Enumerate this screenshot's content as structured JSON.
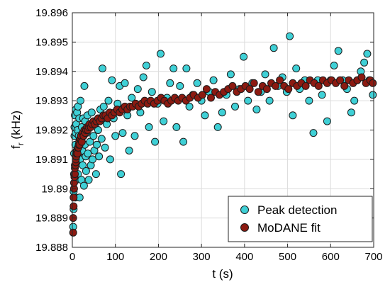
{
  "chart_data": {
    "type": "scatter",
    "xlabel": "t (s)",
    "ylabel_main": "f",
    "ylabel_sub": "r",
    "ylabel_unit": " (kHz)",
    "xlim": [
      0,
      700
    ],
    "ylim": [
      19.888,
      19.896
    ],
    "xticks": [
      0,
      100,
      200,
      300,
      400,
      500,
      600,
      700
    ],
    "yticks": [
      19.888,
      19.889,
      19.89,
      19.891,
      19.892,
      19.893,
      19.894,
      19.895,
      19.896
    ],
    "ytick_labels": [
      "19.888",
      "19.889",
      "19.89",
      "19.891",
      "19.892",
      "19.893",
      "19.894",
      "19.895",
      "19.896"
    ],
    "grid": true,
    "legend_position": "bottom-right",
    "series": [
      {
        "name": "Peak detection",
        "color": "#3fd0d6",
        "points": [
          [
            2,
            19.8887
          ],
          [
            3,
            19.8893
          ],
          [
            3,
            19.8899
          ],
          [
            4,
            19.8905
          ],
          [
            4,
            19.8912
          ],
          [
            5,
            19.8918
          ],
          [
            5,
            19.8921
          ],
          [
            6,
            19.8908
          ],
          [
            6,
            19.8925
          ],
          [
            7,
            19.8897
          ],
          [
            7,
            19.8915
          ],
          [
            8,
            19.8919
          ],
          [
            8,
            19.8927
          ],
          [
            9,
            19.8903
          ],
          [
            9,
            19.8922
          ],
          [
            10,
            19.8913
          ],
          [
            11,
            19.8909
          ],
          [
            11,
            19.8926
          ],
          [
            12,
            19.892
          ],
          [
            13,
            19.8905
          ],
          [
            13,
            19.8928
          ],
          [
            14,
            19.8912
          ],
          [
            15,
            19.8918
          ],
          [
            16,
            19.8924
          ],
          [
            17,
            19.8897
          ],
          [
            18,
            19.891
          ],
          [
            19,
            19.893
          ],
          [
            20,
            19.8917
          ],
          [
            21,
            19.8903
          ],
          [
            22,
            19.8921
          ],
          [
            23,
            19.8913
          ],
          [
            24,
            19.8908
          ],
          [
            25,
            19.8924
          ],
          [
            26,
            19.8918
          ],
          [
            27,
            19.8901
          ],
          [
            28,
            19.8935
          ],
          [
            29,
            19.8915
          ],
          [
            30,
            19.8923
          ],
          [
            31,
            19.8911
          ],
          [
            32,
            19.8906
          ],
          [
            33,
            19.8919
          ],
          [
            35,
            19.8925
          ],
          [
            36,
            19.8912
          ],
          [
            38,
            19.8903
          ],
          [
            40,
            19.8921
          ],
          [
            41,
            19.8916
          ],
          [
            43,
            19.8908
          ],
          [
            45,
            19.8926
          ],
          [
            47,
            19.891
          ],
          [
            49,
            19.8918
          ],
          [
            51,
            19.8913
          ],
          [
            53,
            19.8922
          ],
          [
            55,
            19.8905
          ],
          [
            57,
            19.8915
          ],
          [
            60,
            19.892
          ],
          [
            62,
            19.8911
          ],
          [
            65,
            19.8927
          ],
          [
            68,
            19.8917
          ],
          [
            70,
            19.8941
          ],
          [
            73,
            19.8928
          ],
          [
            76,
            19.8914
          ],
          [
            80,
            19.8922
          ],
          [
            84,
            19.893
          ],
          [
            88,
            19.891
          ],
          [
            92,
            19.8937
          ],
          [
            96,
            19.8924
          ],
          [
            100,
            19.8918
          ],
          [
            105,
            19.8929
          ],
          [
            110,
            19.8935
          ],
          [
            113,
            19.8905
          ],
          [
            117,
            19.8919
          ],
          [
            122,
            19.8936
          ],
          [
            128,
            19.8925
          ],
          [
            132,
            19.8913
          ],
          [
            138,
            19.8931
          ],
          [
            145,
            19.8918
          ],
          [
            152,
            19.8934
          ],
          [
            158,
            19.8926
          ],
          [
            165,
            19.8938
          ],
          [
            172,
            19.8942
          ],
          [
            178,
            19.8921
          ],
          [
            185,
            19.8933
          ],
          [
            192,
            19.8916
          ],
          [
            198,
            19.8929
          ],
          [
            205,
            19.8946
          ],
          [
            212,
            19.8923
          ],
          [
            220,
            19.8931
          ],
          [
            227,
            19.8936
          ],
          [
            235,
            19.8941
          ],
          [
            242,
            19.8921
          ],
          [
            250,
            19.8935
          ],
          [
            258,
            19.8916
          ],
          [
            265,
            19.8941
          ],
          [
            272,
            19.8928
          ],
          [
            280,
            19.8932
          ],
          [
            290,
            19.8936
          ],
          [
            300,
            19.893
          ],
          [
            308,
            19.8925
          ],
          [
            318,
            19.8933
          ],
          [
            328,
            19.8937
          ],
          [
            338,
            19.8921
          ],
          [
            348,
            19.8926
          ],
          [
            358,
            19.8932
          ],
          [
            368,
            19.8939
          ],
          [
            378,
            19.8928
          ],
          [
            388,
            19.8934
          ],
          [
            398,
            19.8945
          ],
          [
            408,
            19.893
          ],
          [
            418,
            19.8936
          ],
          [
            428,
            19.8927
          ],
          [
            438,
            19.8933
          ],
          [
            448,
            19.8939
          ],
          [
            458,
            19.893
          ],
          [
            468,
            19.8948
          ],
          [
            478,
            19.8935
          ],
          [
            488,
            19.8938
          ],
          [
            498,
            19.8933
          ],
          [
            505,
            19.8952
          ],
          [
            512,
            19.8925
          ],
          [
            520,
            19.8941
          ],
          [
            528,
            19.8934
          ],
          [
            540,
            19.8937
          ],
          [
            550,
            19.893
          ],
          [
            560,
            19.8919
          ],
          [
            570,
            19.8937
          ],
          [
            580,
            19.8932
          ],
          [
            592,
            19.8923
          ],
          [
            600,
            19.8937
          ],
          [
            608,
            19.8942
          ],
          [
            618,
            19.8947
          ],
          [
            628,
            19.8937
          ],
          [
            638,
            19.8934
          ],
          [
            648,
            19.8926
          ],
          [
            655,
            19.893
          ],
          [
            662,
            19.8937
          ],
          [
            670,
            19.894
          ],
          [
            678,
            19.8943
          ],
          [
            685,
            19.8946
          ],
          [
            690,
            19.8937
          ],
          [
            698,
            19.8932
          ]
        ]
      },
      {
        "name": "MoDANE fit",
        "color": "#8c1a11",
        "points": [
          [
            2,
            19.8885
          ],
          [
            2,
            19.889
          ],
          [
            3,
            19.8894
          ],
          [
            3,
            19.8897
          ],
          [
            4,
            19.89
          ],
          [
            4,
            19.8902
          ],
          [
            5,
            19.8904
          ],
          [
            6,
            19.8905
          ],
          [
            6,
            19.8907
          ],
          [
            7,
            19.8908
          ],
          [
            8,
            19.8909
          ],
          [
            8,
            19.891
          ],
          [
            9,
            19.8911
          ],
          [
            10,
            19.8912
          ],
          [
            11,
            19.8913
          ],
          [
            12,
            19.8912
          ],
          [
            13,
            19.8914
          ],
          [
            14,
            19.8914
          ],
          [
            15,
            19.8915
          ],
          [
            16,
            19.8916
          ],
          [
            17,
            19.8915
          ],
          [
            18,
            19.8917
          ],
          [
            19,
            19.8917
          ],
          [
            20,
            19.8918
          ],
          [
            22,
            19.8916
          ],
          [
            24,
            19.8919
          ],
          [
            26,
            19.8918
          ],
          [
            28,
            19.892
          ],
          [
            30,
            19.8919
          ],
          [
            32,
            19.892
          ],
          [
            34,
            19.8921
          ],
          [
            36,
            19.892
          ],
          [
            38,
            19.8921
          ],
          [
            40,
            19.8922
          ],
          [
            43,
            19.8921
          ],
          [
            46,
            19.8922
          ],
          [
            49,
            19.8923
          ],
          [
            52,
            19.8922
          ],
          [
            56,
            19.8923
          ],
          [
            60,
            19.8924
          ],
          [
            64,
            19.8923
          ],
          [
            68,
            19.8924
          ],
          [
            72,
            19.8925
          ],
          [
            77,
            19.8925
          ],
          [
            82,
            19.8924
          ],
          [
            87,
            19.8926
          ],
          [
            92,
            19.8925
          ],
          [
            98,
            19.8926
          ],
          [
            104,
            19.8927
          ],
          [
            110,
            19.8926
          ],
          [
            116,
            19.8927
          ],
          [
            122,
            19.8928
          ],
          [
            128,
            19.8927
          ],
          [
            134,
            19.8928
          ],
          [
            140,
            19.8928
          ],
          [
            147,
            19.8929
          ],
          [
            154,
            19.8928
          ],
          [
            161,
            19.8929
          ],
          [
            168,
            19.893
          ],
          [
            175,
            19.8929
          ],
          [
            182,
            19.893
          ],
          [
            190,
            19.8929
          ],
          [
            198,
            19.893
          ],
          [
            206,
            19.8931
          ],
          [
            214,
            19.893
          ],
          [
            222,
            19.8929
          ],
          [
            230,
            19.893
          ],
          [
            238,
            19.8931
          ],
          [
            246,
            19.893
          ],
          [
            255,
            19.8931
          ],
          [
            264,
            19.893
          ],
          [
            273,
            19.8931
          ],
          [
            282,
            19.8932
          ],
          [
            292,
            19.8931
          ],
          [
            302,
            19.8932
          ],
          [
            312,
            19.8934
          ],
          [
            322,
            19.8931
          ],
          [
            332,
            19.8933
          ],
          [
            342,
            19.8932
          ],
          [
            352,
            19.8933
          ],
          [
            362,
            19.8934
          ],
          [
            372,
            19.8935
          ],
          [
            382,
            19.8933
          ],
          [
            392,
            19.8934
          ],
          [
            402,
            19.8935
          ],
          [
            412,
            19.8934
          ],
          [
            422,
            19.8936
          ],
          [
            432,
            19.8933
          ],
          [
            442,
            19.8935
          ],
          [
            452,
            19.8934
          ],
          [
            462,
            19.8936
          ],
          [
            472,
            19.8935
          ],
          [
            482,
            19.8937
          ],
          [
            492,
            19.8935
          ],
          [
            502,
            19.8934
          ],
          [
            512,
            19.8936
          ],
          [
            522,
            19.8935
          ],
          [
            532,
            19.8936
          ],
          [
            542,
            19.8935
          ],
          [
            552,
            19.8937
          ],
          [
            562,
            19.8936
          ],
          [
            572,
            19.8935
          ],
          [
            582,
            19.8937
          ],
          [
            592,
            19.8936
          ],
          [
            602,
            19.8937
          ],
          [
            612,
            19.8936
          ],
          [
            622,
            19.8937
          ],
          [
            632,
            19.8935
          ],
          [
            642,
            19.8937
          ],
          [
            652,
            19.8936
          ],
          [
            662,
            19.8937
          ],
          [
            672,
            19.8938
          ],
          [
            682,
            19.8936
          ],
          [
            692,
            19.8937
          ],
          [
            698,
            19.8936
          ]
        ]
      }
    ]
  }
}
